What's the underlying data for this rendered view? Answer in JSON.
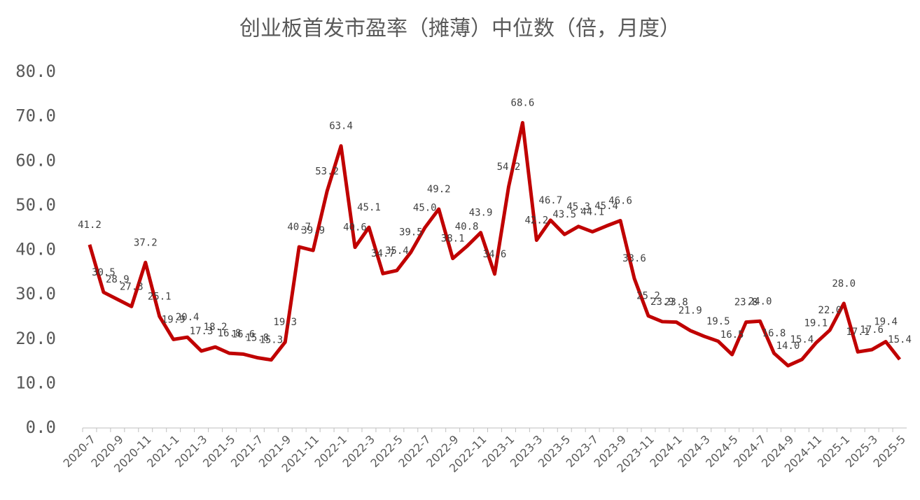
{
  "chart_data": {
    "type": "line",
    "title": "创业板首发市盈率（摊薄）中位数（倍，月度）",
    "categories": [
      "2020-7",
      null,
      "2020-9",
      null,
      "2020-11",
      null,
      "2021-1",
      null,
      "2021-3",
      null,
      "2021-5",
      null,
      "2021-7",
      null,
      "2021-9",
      null,
      "2021-11",
      null,
      "2022-1",
      null,
      "2022-3",
      null,
      "2022-5",
      null,
      "2022-7",
      null,
      "2022-9",
      null,
      "2022-11",
      null,
      "2023-1",
      null,
      "2023-3",
      null,
      "2023-5",
      null,
      "2023-7",
      null,
      "2023-9",
      null,
      "2023-11",
      null,
      "2024-1",
      null,
      "2024-3",
      null,
      "2024-5",
      null,
      "2024-7",
      null,
      "2024-9",
      null,
      "2024-11",
      null,
      "2025-1",
      null,
      "2025-3",
      null,
      "2025-5"
    ],
    "series": [
      {
        "name": "创业板首发市盈率（摊薄）中位数",
        "color": "#c00000",
        "values": [
          41.2,
          30.5,
          28.9,
          27.3,
          37.2,
          25.1,
          19.9,
          20.4,
          17.3,
          18.2,
          16.8,
          16.6,
          15.8,
          15.3,
          19.3,
          40.7,
          39.9,
          53.2,
          63.4,
          40.6,
          45.1,
          34.7,
          35.4,
          39.5,
          45.0,
          49.2,
          38.1,
          40.8,
          43.9,
          34.6,
          54.2,
          68.6,
          42.2,
          46.7,
          43.5,
          45.3,
          44.1,
          45.4,
          46.6,
          33.6,
          25.2,
          23.9,
          23.8,
          21.9,
          20.6,
          19.5,
          16.5,
          23.8,
          24.0,
          16.8,
          14.0,
          15.4,
          19.1,
          22.0,
          28.0,
          17.1,
          17.6,
          19.4,
          15.4
        ],
        "value_labels": [
          "41.2",
          "30.5",
          "28.9",
          "27.3",
          "37.2",
          "25.1",
          "19.9",
          "20.4",
          "17.3",
          "18.2",
          "16.8",
          "16.6",
          "15.8",
          "15.3",
          "19.3",
          "40.7",
          "39.9",
          "53.2",
          "63.4",
          "40.6",
          "45.1",
          "34.7",
          "35.4",
          "39.5",
          "45.0",
          "49.2",
          "38.1",
          "40.8",
          "43.9",
          "34.6",
          "54.2",
          "68.6",
          "42.2",
          "46.7",
          "43.5",
          "45.3",
          "44.1",
          "45.4",
          "46.6",
          "33.6",
          "25.2",
          "23.9",
          "23.8",
          "21.9",
          null,
          "19.5",
          "16.5",
          "23.8",
          "24.0",
          "16.8",
          "14.0",
          "15.4",
          "19.1",
          "22.0",
          "28.0",
          "17.1",
          "17.6",
          "19.4",
          "15.4"
        ]
      }
    ],
    "ylim": [
      0,
      80
    ],
    "yticks": [
      {
        "value": 0,
        "label": "0.0"
      },
      {
        "value": 10,
        "label": "10.0"
      },
      {
        "value": 20,
        "label": "20.0"
      },
      {
        "value": 30,
        "label": "30.0"
      },
      {
        "value": 40,
        "label": "40.0"
      },
      {
        "value": 50,
        "label": "50.0"
      },
      {
        "value": 60,
        "label": "60.0"
      },
      {
        "value": 70,
        "label": "70.0"
      },
      {
        "value": 80,
        "label": "80.0"
      }
    ],
    "grid": false
  }
}
